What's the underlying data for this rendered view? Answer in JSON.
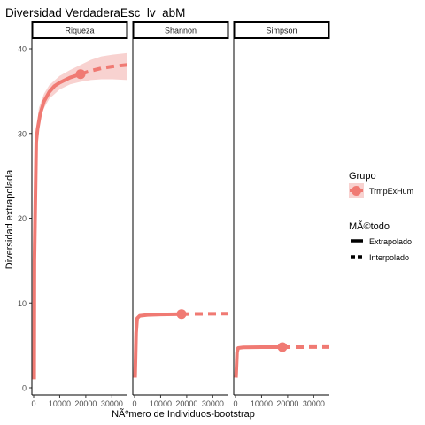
{
  "chart_data": {
    "type": "line",
    "title": "Diversidad VerdaderaEsc_lv_abM",
    "xlabel": "NÃºmero de Individuos-bootstrap",
    "ylabel": "Diversidad extrapolada",
    "xlim": [
      0,
      36000
    ],
    "ylim": [
      0,
      41
    ],
    "x_ticks": [
      0,
      10000,
      20000,
      30000
    ],
    "x_tick_labels": [
      "0",
      "10000",
      "20000",
      "30000"
    ],
    "y_ticks": [
      0,
      10,
      20,
      30,
      40
    ],
    "y_tick_labels": [
      "0",
      "10",
      "20",
      "30",
      "40"
    ],
    "grid": false,
    "color": "#F07A73",
    "band_color": "#F8D2D0",
    "legend_position": "right",
    "legend": {
      "group_title": "Grupo",
      "group_items": [
        "TrmpExHum"
      ],
      "method_title": "MÃ©todo",
      "method_items": [
        "Extrapolado",
        "Interpolado"
      ]
    },
    "panels": [
      {
        "name": "Riqueza",
        "observed": {
          "x": 18000,
          "y": 37
        },
        "series": [
          {
            "segment": "solid",
            "points": [
              [
                200,
                1
              ],
              [
                300,
                15
              ],
              [
                1000,
                29
              ],
              [
                1500,
                30.5
              ],
              [
                2500,
                32.3
              ],
              [
                4000,
                33.8
              ],
              [
                6000,
                34.9
              ],
              [
                8000,
                35.6
              ],
              [
                10000,
                36
              ],
              [
                14000,
                36.6
              ],
              [
                18000,
                37
              ]
            ]
          },
          {
            "segment": "dashed",
            "points": [
              [
                18000,
                37
              ],
              [
                22000,
                37.4
              ],
              [
                26000,
                37.7
              ],
              [
                30000,
                37.9
              ],
              [
                36000,
                38.1
              ]
            ]
          }
        ],
        "band": {
          "upper": [
            [
              1000,
              30
            ],
            [
              2000,
              33
            ],
            [
              4000,
              34.7
            ],
            [
              6000,
              35.7
            ],
            [
              10000,
              36.8
            ],
            [
              14000,
              37.5
            ],
            [
              18000,
              38.1
            ],
            [
              22000,
              38.7
            ],
            [
              26000,
              39.1
            ],
            [
              30000,
              39.3
            ],
            [
              36000,
              39.5
            ]
          ],
          "lower": [
            [
              1000,
              28.6
            ],
            [
              2000,
              31.6
            ],
            [
              4000,
              33
            ],
            [
              6000,
              34.1
            ],
            [
              10000,
              35.2
            ],
            [
              14000,
              35.8
            ],
            [
              18000,
              36.1
            ],
            [
              22000,
              36.3
            ],
            [
              26000,
              36.4
            ],
            [
              30000,
              36.4
            ],
            [
              36000,
              36.3
            ]
          ]
        }
      },
      {
        "name": "Shannon",
        "observed": {
          "x": 18000,
          "y": 8.7
        },
        "series": [
          {
            "segment": "solid",
            "points": [
              [
                200,
                1.2
              ],
              [
                600,
                6.5
              ],
              [
                1000,
                8.2
              ],
              [
                2000,
                8.5
              ],
              [
                5000,
                8.6
              ],
              [
                10000,
                8.65
              ],
              [
                18000,
                8.7
              ]
            ]
          },
          {
            "segment": "dashed",
            "points": [
              [
                18000,
                8.7
              ],
              [
                36000,
                8.75
              ]
            ]
          }
        ]
      },
      {
        "name": "Simpson",
        "observed": {
          "x": 18000,
          "y": 4.8
        },
        "series": [
          {
            "segment": "solid",
            "points": [
              [
                200,
                1.2
              ],
              [
                600,
                4.2
              ],
              [
                1000,
                4.7
              ],
              [
                3000,
                4.78
              ],
              [
                10000,
                4.8
              ],
              [
                18000,
                4.8
              ]
            ]
          },
          {
            "segment": "dashed",
            "points": [
              [
                18000,
                4.8
              ],
              [
                36000,
                4.82
              ]
            ]
          }
        ]
      }
    ]
  }
}
